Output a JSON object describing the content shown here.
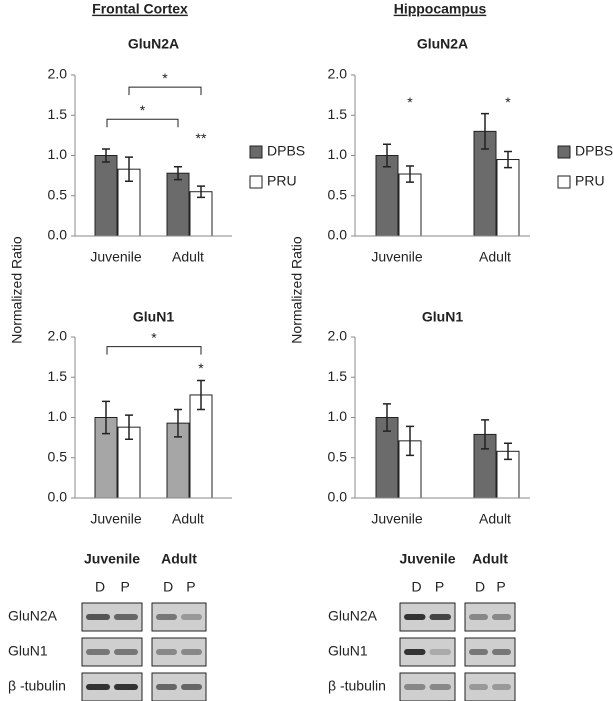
{
  "headers": [
    "Frontal Cortex",
    "Hippocampus"
  ],
  "chart_data": [
    {
      "type": "bar",
      "title": "GluN2A",
      "ylabel": "Normalized Ratio",
      "categories": [
        "Juvenile",
        "Adult"
      ],
      "series": [
        {
          "name": "DPBS",
          "color": "#6b6b6b",
          "values": [
            1.0,
            0.78
          ],
          "errors": [
            0.08,
            0.08
          ]
        },
        {
          "name": "PRU",
          "color": "#ffffff",
          "values": [
            0.83,
            0.55
          ],
          "errors": [
            0.15,
            0.07
          ]
        }
      ],
      "ylim": [
        0,
        2
      ],
      "yticks": [
        {
          "value": 0,
          "label": "0.0"
        },
        {
          "value": 0.5,
          "label": "0.5"
        },
        {
          "value": 1,
          "label": "1.0"
        },
        {
          "value": 1.5,
          "label": "1.5"
        },
        {
          "value": 2,
          "label": "2.0"
        }
      ],
      "legend": "right",
      "annotations": [
        "*",
        "*",
        "**"
      ]
    },
    {
      "type": "bar",
      "title": "GluN2A",
      "ylabel": "Normalized Ratio",
      "categories": [
        "Juvenile",
        "Adult"
      ],
      "series": [
        {
          "name": "DPBS",
          "color": "#6b6b6b",
          "values": [
            1.0,
            1.3
          ],
          "errors": [
            0.14,
            0.22
          ]
        },
        {
          "name": "PRU",
          "color": "#ffffff",
          "values": [
            0.77,
            0.95
          ],
          "errors": [
            0.1,
            0.1
          ]
        }
      ],
      "ylim": [
        0,
        2
      ],
      "yticks": [
        {
          "value": 0,
          "label": "0.0"
        },
        {
          "value": 0.5,
          "label": "0.5"
        },
        {
          "value": 1,
          "label": "1.0"
        },
        {
          "value": 1.5,
          "label": "1.5"
        },
        {
          "value": 2,
          "label": "2.0"
        }
      ],
      "legend": "right",
      "annotations": [
        "*",
        "*"
      ]
    },
    {
      "type": "bar",
      "title": "GluN1",
      "categories": [
        "Juvenile",
        "Adult"
      ],
      "series": [
        {
          "name": "DPBS",
          "color": "#a6a6a6",
          "values": [
            1.0,
            0.93
          ],
          "errors": [
            0.2,
            0.17
          ]
        },
        {
          "name": "PRU",
          "color": "#ffffff",
          "values": [
            0.88,
            1.28
          ],
          "errors": [
            0.15,
            0.18
          ]
        }
      ],
      "ylim": [
        0,
        2
      ],
      "yticks": [
        {
          "value": 0,
          "label": "0.0"
        },
        {
          "value": 0.5,
          "label": "0.5"
        },
        {
          "value": 1,
          "label": "1.0"
        },
        {
          "value": 1.5,
          "label": "1.5"
        },
        {
          "value": 2,
          "label": "2.0"
        }
      ],
      "annotations": [
        "*",
        "*"
      ]
    },
    {
      "type": "bar",
      "title": "GluN1",
      "categories": [
        "Juvenile",
        "Adult"
      ],
      "series": [
        {
          "name": "DPBS",
          "color": "#6b6b6b",
          "values": [
            1.0,
            0.79
          ],
          "errors": [
            0.17,
            0.18
          ]
        },
        {
          "name": "PRU",
          "color": "#ffffff",
          "values": [
            0.71,
            0.58
          ],
          "errors": [
            0.18,
            0.1
          ]
        }
      ],
      "ylim": [
        0,
        2
      ],
      "yticks": [
        {
          "value": 0,
          "label": "0.0"
        },
        {
          "value": 0.5,
          "label": "0.5"
        },
        {
          "value": 1,
          "label": "1.0"
        },
        {
          "value": 1.5,
          "label": "1.5"
        },
        {
          "value": 2,
          "label": "2.0"
        }
      ],
      "annotations": []
    }
  ],
  "blots": [
    {
      "groups": [
        "Juvenile",
        "Adult"
      ],
      "lanes": [
        "D",
        "P"
      ],
      "rows": [
        "GluN2A",
        "GluN1",
        "β -tubulin"
      ]
    },
    {
      "groups": [
        "Juvenile",
        "Adult"
      ],
      "lanes": [
        "D",
        "P"
      ],
      "rows": [
        "GluN2A",
        "GluN1",
        "β -tubulin"
      ]
    }
  ]
}
